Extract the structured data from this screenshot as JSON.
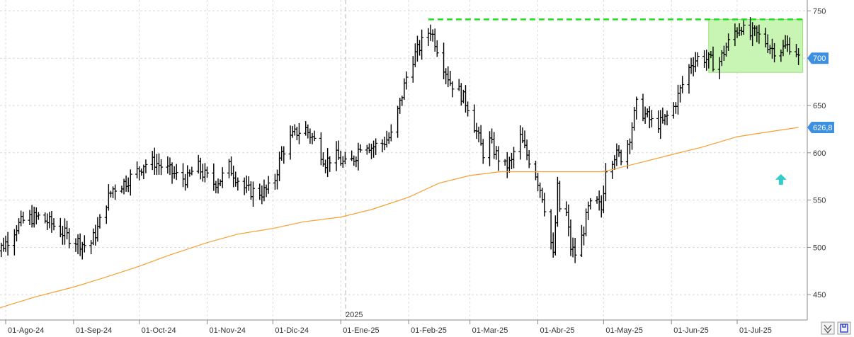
{
  "chart_data": {
    "type": "bar",
    "style": "ohlc",
    "title": "",
    "xlabel": "",
    "ylabel": "",
    "ylim": [
      425,
      755
    ],
    "y_ticks": [
      "450",
      "500",
      "550",
      "600",
      "650",
      "700",
      "750"
    ],
    "x_ticks": [
      "01-Ago-24",
      "01-Sep-24",
      "01-Oct-24",
      "01-Nov-24",
      "01-Dic-24",
      "01-Ene-25",
      "01-Feb-25",
      "01-Mar-25",
      "01-Abr-25",
      "01-May-25",
      "01-Jun-25",
      "01-Jul-25"
    ],
    "year_marker": "2025",
    "grid": true,
    "colors": {
      "price": "#000000",
      "moving_average": "#f5a032",
      "resistance": "#22dd22",
      "zone_fill": "#c8f5b4",
      "zone_border": "#9be07f",
      "last_price_flag": "#3d8fe0",
      "ma_flag": "#3d8fe0",
      "arrow": "#33cccc"
    },
    "price_anchors": [
      [
        "2024-07-24",
        468
      ],
      [
        "2024-07-26",
        490
      ],
      [
        "2024-08-01",
        505
      ],
      [
        "2024-08-06",
        522
      ],
      [
        "2024-08-10",
        530
      ],
      [
        "2024-08-16",
        532
      ],
      [
        "2024-08-22",
        525
      ],
      [
        "2024-08-29",
        512
      ],
      [
        "2024-09-04",
        505
      ],
      [
        "2024-09-08",
        500
      ],
      [
        "2024-09-12",
        520
      ],
      [
        "2024-09-16",
        548
      ],
      [
        "2024-09-19",
        562
      ],
      [
        "2024-09-24",
        568
      ],
      [
        "2024-09-30",
        580
      ],
      [
        "2024-10-03",
        588
      ],
      [
        "2024-10-08",
        590
      ],
      [
        "2024-10-14",
        582
      ],
      [
        "2024-10-19",
        574
      ],
      [
        "2024-10-23",
        572
      ],
      [
        "2024-10-27",
        588
      ],
      [
        "2024-10-30",
        578
      ],
      [
        "2024-11-04",
        568
      ],
      [
        "2024-11-07",
        572
      ],
      [
        "2024-11-11",
        585
      ],
      [
        "2024-11-15",
        572
      ],
      [
        "2024-11-19",
        560
      ],
      [
        "2024-11-26",
        558
      ],
      [
        "2024-12-01",
        564
      ],
      [
        "2024-12-05",
        600
      ],
      [
        "2024-12-09",
        615
      ],
      [
        "2024-12-12",
        622
      ],
      [
        "2024-12-16",
        625
      ],
      [
        "2024-12-21",
        610
      ],
      [
        "2024-12-25",
        590
      ],
      [
        "2024-12-29",
        598
      ],
      [
        "2025-01-04",
        585
      ],
      [
        "2025-01-08",
        598
      ],
      [
        "2025-01-11",
        614
      ],
      [
        "2025-01-15",
        606
      ],
      [
        "2025-01-20",
        610
      ],
      [
        "2025-01-24",
        618
      ],
      [
        "2025-01-28",
        652
      ],
      [
        "2025-01-31",
        680
      ],
      [
        "2025-02-03",
        700
      ],
      [
        "2025-02-06",
        712
      ],
      [
        "2025-02-09",
        725
      ],
      [
        "2025-02-11",
        730
      ],
      [
        "2025-02-13",
        718
      ],
      [
        "2025-02-16",
        698
      ],
      [
        "2025-02-20",
        675
      ],
      [
        "2025-02-24",
        665
      ],
      [
        "2025-02-28",
        650
      ],
      [
        "2025-03-04",
        622
      ],
      [
        "2025-03-07",
        600
      ],
      [
        "2025-03-10",
        612
      ],
      [
        "2025-03-13",
        598
      ],
      [
        "2025-03-17",
        585
      ],
      [
        "2025-03-20",
        590
      ],
      [
        "2025-03-23",
        622
      ],
      [
        "2025-03-27",
        598
      ],
      [
        "2025-03-31",
        578
      ],
      [
        "2025-04-03",
        555
      ],
      [
        "2025-04-06",
        520
      ],
      [
        "2025-04-08",
        490
      ],
      [
        "2025-04-10",
        562
      ],
      [
        "2025-04-12",
        520
      ],
      [
        "2025-04-14",
        535
      ],
      [
        "2025-04-16",
        500
      ],
      [
        "2025-04-19",
        490
      ],
      [
        "2025-04-21",
        510
      ],
      [
        "2025-04-24",
        540
      ],
      [
        "2025-04-27",
        550
      ],
      [
        "2025-04-30",
        540
      ],
      [
        "2025-05-02",
        585
      ],
      [
        "2025-05-06",
        598
      ],
      [
        "2025-05-10",
        595
      ],
      [
        "2025-05-13",
        618
      ],
      [
        "2025-05-16",
        650
      ],
      [
        "2025-05-20",
        640
      ],
      [
        "2025-05-24",
        630
      ],
      [
        "2025-05-28",
        632
      ],
      [
        "2025-06-02",
        648
      ],
      [
        "2025-06-06",
        672
      ],
      [
        "2025-06-10",
        695
      ],
      [
        "2025-06-14",
        702
      ],
      [
        "2025-06-18",
        698
      ],
      [
        "2025-06-22",
        692
      ],
      [
        "2025-06-26",
        712
      ],
      [
        "2025-06-30",
        728
      ],
      [
        "2025-07-03",
        735
      ],
      [
        "2025-07-05",
        722
      ],
      [
        "2025-07-09",
        726
      ],
      [
        "2025-07-13",
        720
      ],
      [
        "2025-07-17",
        710
      ],
      [
        "2025-07-20",
        708
      ],
      [
        "2025-07-23",
        712
      ],
      [
        "2025-07-27",
        715
      ],
      [
        "2025-07-29",
        700
      ]
    ],
    "moving_average": [
      [
        "2024-07-22",
        430
      ],
      [
        "2024-08-01",
        438
      ],
      [
        "2024-08-15",
        448
      ],
      [
        "2024-09-01",
        458
      ],
      [
        "2024-09-15",
        468
      ],
      [
        "2024-10-01",
        480
      ],
      [
        "2024-10-15",
        492
      ],
      [
        "2024-11-01",
        505
      ],
      [
        "2024-11-15",
        514
      ],
      [
        "2024-12-01",
        520
      ],
      [
        "2024-12-15",
        527
      ],
      [
        "2025-01-01",
        532
      ],
      [
        "2025-01-15",
        540
      ],
      [
        "2025-02-01",
        553
      ],
      [
        "2025-02-15",
        568
      ],
      [
        "2025-03-01",
        576
      ],
      [
        "2025-03-15",
        580
      ],
      [
        "2025-04-01",
        580
      ],
      [
        "2025-04-15",
        580
      ],
      [
        "2025-05-01",
        580
      ],
      [
        "2025-05-15",
        588
      ],
      [
        "2025-06-01",
        598
      ],
      [
        "2025-06-15",
        606
      ],
      [
        "2025-07-01",
        617
      ],
      [
        "2025-07-15",
        622
      ],
      [
        "2025-07-29",
        626.8
      ]
    ],
    "resistance_line": {
      "value": 741,
      "from": "2025-02-10",
      "to": "2025-07-29"
    },
    "consolidation_zone": {
      "from": "2025-06-18",
      "to": "2025-07-29",
      "low": 685,
      "high": 741
    },
    "last_price": "700",
    "moving_average_last": "626,8",
    "arrow_marker": {
      "date": "2025-07-21",
      "value": 570,
      "direction": "up"
    },
    "window_controls": [
      "expand-icon",
      "save-icon"
    ]
  }
}
